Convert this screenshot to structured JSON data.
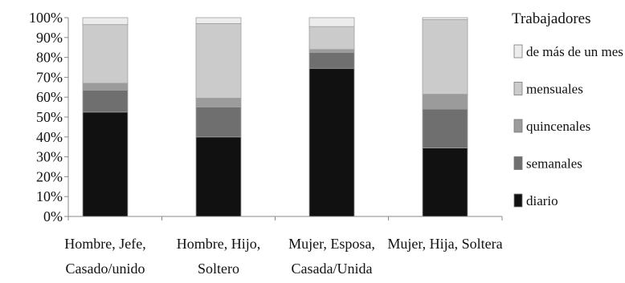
{
  "chart_data": {
    "type": "bar",
    "stacked": true,
    "percent": true,
    "categories": [
      [
        "Hombre, Jefe,",
        "Casado/unido"
      ],
      [
        "Hombre, Hijo,",
        "Soltero"
      ],
      [
        "Mujer, Esposa,",
        "Casada/Unida"
      ],
      [
        "Mujer, Hija, Soltera"
      ]
    ],
    "series": [
      {
        "name": "diario",
        "color": "#111111",
        "values": [
          52.5,
          40,
          74.5,
          34.5
        ]
      },
      {
        "name": "semanales",
        "color": "#6f6f6f",
        "values": [
          11,
          15,
          8,
          19.5
        ]
      },
      {
        "name": "quincenales",
        "color": "#9b9b9b",
        "values": [
          3.5,
          4.5,
          1.5,
          7.5
        ]
      },
      {
        "name": "mensuales",
        "color": "#cbcbcb",
        "values": [
          29.5,
          37.5,
          11.5,
          37.5
        ]
      },
      {
        "name": "de más de un mes",
        "color": "#ececec",
        "values": [
          3.5,
          3,
          4.5,
          1
        ]
      }
    ],
    "legend_title": "Trabajadores",
    "legend_position": "right",
    "ylim": [
      0,
      100
    ],
    "yticks": [
      "0%",
      "10%",
      "20%",
      "30%",
      "40%",
      "50%",
      "60%",
      "70%",
      "80%",
      "90%",
      "100%"
    ],
    "xlabel": "",
    "ylabel": "",
    "grid": false
  }
}
